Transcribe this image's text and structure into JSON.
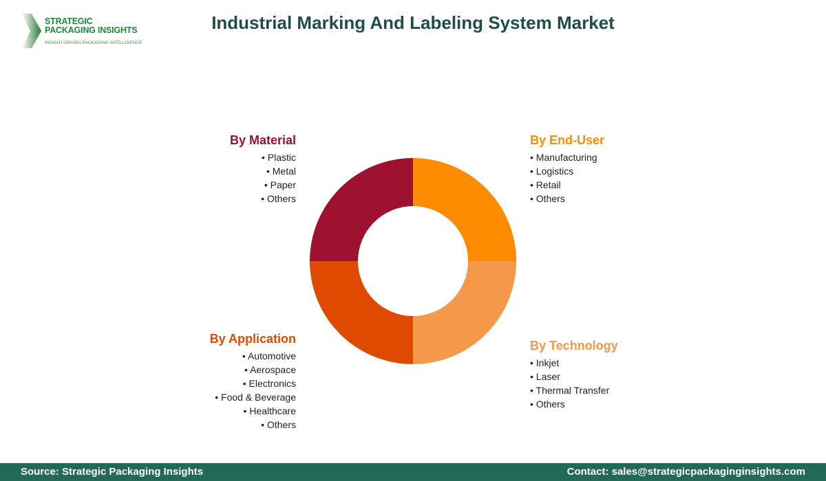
{
  "logo": {
    "line1": "STRATEGIC",
    "line2": "PACKAGING INSIGHTS",
    "tagline": "INSIGHT-DRIVEN PACKAGING INTELLIGENCE"
  },
  "title": "Industrial Marking And Labeling System Market",
  "segments": {
    "material": {
      "title": "By Material",
      "color": "#9E1230",
      "items": [
        "Plastic",
        "Metal",
        "Paper",
        "Others"
      ]
    },
    "end_user": {
      "title": "By End-User",
      "color": "#FF8C00",
      "items": [
        "Manufacturing",
        "Logistics",
        "Retail",
        "Others"
      ]
    },
    "application": {
      "title": "By Application",
      "color": "#E04A00",
      "items": [
        "Automotive",
        "Aerospace",
        "Electronics",
        "Food & Beverage",
        "Healthcare",
        "Others"
      ]
    },
    "technology": {
      "title": "By Technology",
      "color": "#F4994A",
      "items": [
        "Inkjet",
        "Laser",
        "Thermal Transfer",
        "Others"
      ]
    }
  },
  "footer": {
    "source": "Source: Strategic Packaging Insights",
    "contact": "Contact: sales@strategicpackaginginsights.com"
  }
}
